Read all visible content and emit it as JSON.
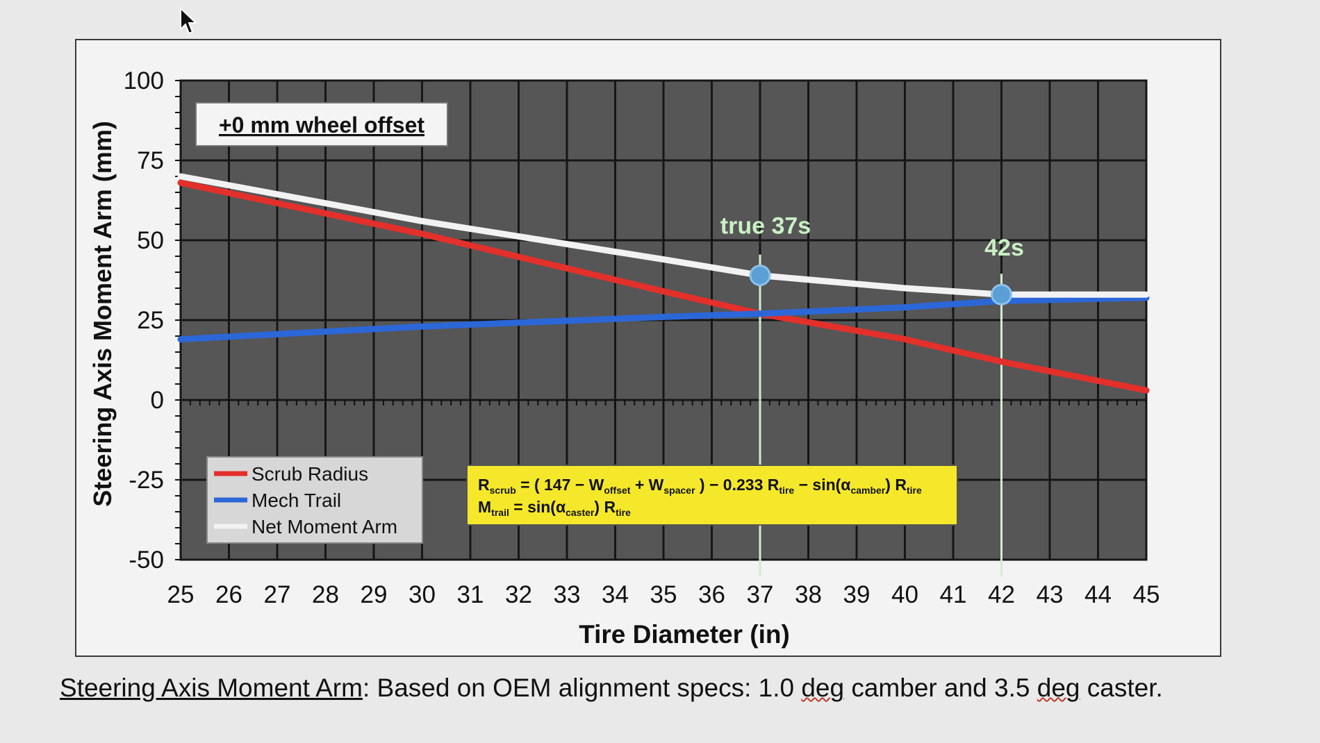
{
  "pointer": {
    "icon": "arrow-cursor-icon"
  },
  "chart_data": {
    "type": "line",
    "title": "",
    "xlabel": "Tire Diameter (in)",
    "ylabel": "Steering Axis Moment Arm (mm)",
    "xlim": [
      25,
      45
    ],
    "ylim": [
      -50,
      100
    ],
    "x_ticks": [
      25,
      26,
      27,
      28,
      29,
      30,
      31,
      32,
      33,
      34,
      35,
      36,
      37,
      38,
      39,
      40,
      41,
      42,
      43,
      44,
      45
    ],
    "y_ticks": [
      100,
      75,
      50,
      25,
      0,
      -25,
      -50
    ],
    "grid": true,
    "x": [
      25,
      30,
      35,
      37,
      40,
      42,
      45
    ],
    "series": [
      {
        "name": "Scrub Radius",
        "color": "#e3302b",
        "values": [
          68,
          52,
          34,
          27,
          19,
          12,
          3
        ]
      },
      {
        "name": "Mech Trail",
        "color": "#2c67d8",
        "values": [
          19,
          23,
          26,
          27,
          29,
          31,
          32
        ]
      },
      {
        "name": "Net Moment Arm",
        "color": "#f2f2f2",
        "values": [
          70,
          56,
          44,
          39,
          35,
          33,
          33
        ]
      }
    ],
    "annotations": [
      {
        "text": "true 37s",
        "x": 37,
        "y": 39
      },
      {
        "text": "42s",
        "x": 42,
        "y": 33
      }
    ],
    "inset_label": "+0 mm wheel offset",
    "legend_position": "bottom-left",
    "formula": {
      "line1": "R_scrub = ( 147 − W_offset + W_spacer ) − 0.233 R_tire − sin(α_camber) R_tire",
      "line2": "M_trail = sin(α_caster) R_tire"
    }
  },
  "formula_parts": {
    "r": "R",
    "scrub": "scrub",
    "open": " = ( 147 − ",
    "w1": "W",
    "offset": "offset",
    "plus": " + ",
    "w2": "W",
    "spacer": "spacer",
    "mid": " ) − 0.233 ",
    "r2": "R",
    "tire1": "tire",
    "sinpart": " − sin(",
    "alpha1": "α",
    "camber": "camber",
    "close1": ") ",
    "r3": "R",
    "tire2": "tire",
    "m": "M",
    "trail": "trail",
    "eq2": " = sin(",
    "alpha2": "α",
    "caster": "caster",
    "close2": ") ",
    "r4": "R",
    "tire3": "tire"
  },
  "caption": {
    "head": "Steering Axis Moment Arm",
    "body_a": ": Based on OEM alignment specs: 1.0 ",
    "deg1": "deg",
    "body_b": " camber and 3.5 ",
    "deg2": "deg",
    "body_c": " caster."
  }
}
